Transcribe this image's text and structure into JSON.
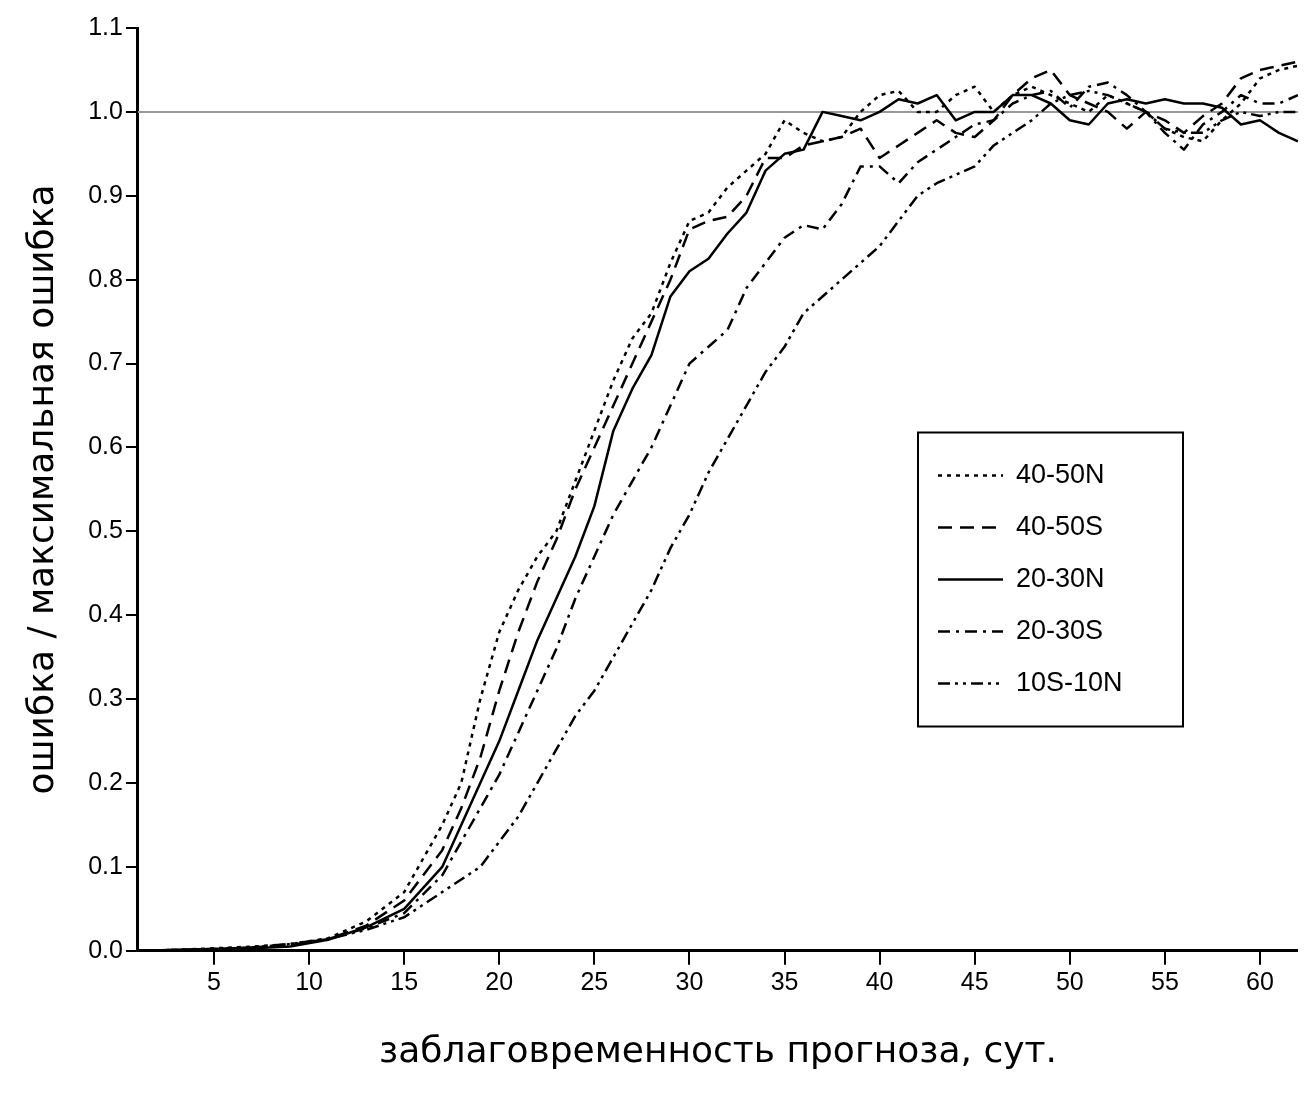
{
  "chart_data": {
    "type": "line",
    "xlabel": "заблаговременность прогноза, сут.",
    "ylabel": "ошибка / максимальная ошибка",
    "x": [
      1,
      3,
      5,
      7,
      9,
      11,
      13,
      15,
      17,
      18,
      19,
      20,
      21,
      22,
      23,
      24,
      25,
      26,
      27,
      28,
      29,
      30,
      31,
      32,
      33,
      34,
      35,
      36,
      37,
      38,
      39,
      40,
      41,
      42,
      43,
      44,
      45,
      46,
      47,
      48,
      49,
      50,
      51,
      52,
      53,
      54,
      55,
      56,
      57,
      58,
      59,
      60,
      61,
      62
    ],
    "series": [
      {
        "name": "40-50N",
        "color": "#000000",
        "line_style": "dotted",
        "values": [
          0,
          0.001,
          0.003,
          0.005,
          0.008,
          0.015,
          0.035,
          0.07,
          0.15,
          0.2,
          0.3,
          0.38,
          0.43,
          0.47,
          0.5,
          0.56,
          0.62,
          0.68,
          0.73,
          0.76,
          0.82,
          0.87,
          0.88,
          0.91,
          0.93,
          0.95,
          0.99,
          0.975,
          0.965,
          0.97,
          1.0,
          1.02,
          1.025,
          1.0,
          1.0,
          1.02,
          1.03,
          1.0,
          1.02,
          1.03,
          1.02,
          1.01,
          1.0,
          1.02,
          1.01,
          1.0,
          0.98,
          0.97,
          0.965,
          0.99,
          1.01,
          1.04,
          1.05,
          1.055
        ]
      },
      {
        "name": "40-50S",
        "color": "#000000",
        "line_style": "dashed",
        "values": [
          0,
          0.001,
          0.002,
          0.004,
          0.007,
          0.014,
          0.03,
          0.06,
          0.12,
          0.17,
          0.23,
          0.31,
          0.38,
          0.44,
          0.49,
          0.55,
          0.6,
          0.65,
          0.7,
          0.75,
          0.8,
          0.86,
          0.87,
          0.875,
          0.9,
          0.945,
          0.945,
          0.96,
          0.965,
          0.97,
          0.98,
          0.945,
          0.96,
          0.975,
          0.99,
          0.975,
          0.97,
          0.99,
          1.02,
          1.04,
          1.05,
          1.02,
          1.01,
          1.0,
          0.98,
          1.0,
          0.99,
          0.975,
          0.995,
          1.01,
          1.04,
          1.05,
          1.055,
          1.06
        ]
      },
      {
        "name": "20-30N",
        "color": "#000000",
        "line_style": "solid",
        "values": [
          0,
          0.001,
          0.002,
          0.003,
          0.005,
          0.013,
          0.028,
          0.05,
          0.1,
          0.15,
          0.2,
          0.25,
          0.31,
          0.37,
          0.42,
          0.47,
          0.53,
          0.62,
          0.67,
          0.71,
          0.78,
          0.81,
          0.825,
          0.855,
          0.88,
          0.93,
          0.95,
          0.955,
          1.0,
          0.995,
          0.99,
          1.0,
          1.015,
          1.01,
          1.02,
          0.99,
          1.0,
          1.0,
          1.02,
          1.02,
          1.01,
          0.99,
          0.985,
          1.01,
          1.015,
          1.01,
          1.015,
          1.01,
          1.01,
          1.005,
          0.985,
          0.99,
          0.975,
          0.965
        ]
      },
      {
        "name": "20-30S",
        "color": "#000000",
        "line_style": "dashdot",
        "values": [
          0,
          0.001,
          0.002,
          0.004,
          0.008,
          0.014,
          0.027,
          0.045,
          0.09,
          0.13,
          0.17,
          0.21,
          0.26,
          0.31,
          0.36,
          0.42,
          0.47,
          0.52,
          0.56,
          0.6,
          0.65,
          0.7,
          0.72,
          0.74,
          0.79,
          0.82,
          0.85,
          0.865,
          0.86,
          0.89,
          0.935,
          0.935,
          0.915,
          0.94,
          0.955,
          0.97,
          0.985,
          0.99,
          1.01,
          1.02,
          1.025,
          1.005,
          1.03,
          1.035,
          1.02,
          1.0,
          0.975,
          0.955,
          0.985,
          1.0,
          1.02,
          1.01,
          1.01,
          1.02
        ]
      },
      {
        "name": "10S-10N",
        "color": "#000000",
        "line_style": "dashdotdot",
        "values": [
          0,
          0.001,
          0.002,
          0.004,
          0.008,
          0.014,
          0.025,
          0.04,
          0.07,
          0.085,
          0.1,
          0.13,
          0.16,
          0.2,
          0.24,
          0.28,
          0.31,
          0.35,
          0.39,
          0.43,
          0.48,
          0.52,
          0.57,
          0.61,
          0.65,
          0.69,
          0.72,
          0.76,
          0.78,
          0.8,
          0.82,
          0.84,
          0.87,
          0.9,
          0.915,
          0.925,
          0.935,
          0.96,
          0.975,
          0.99,
          1.01,
          1.02,
          1.025,
          1.02,
          1.01,
          1.0,
          0.98,
          0.975,
          0.975,
          0.99,
          1.0,
          0.995,
          1.0,
          1.0
        ]
      }
    ],
    "xlim": [
      1,
      62
    ],
    "xticks": [
      5,
      10,
      15,
      20,
      25,
      30,
      35,
      40,
      45,
      50,
      55,
      60
    ],
    "ylim": [
      0,
      1.1
    ],
    "yticks": [
      {
        "value": 0,
        "label": "0.0"
      },
      {
        "value": 0.1,
        "label": "0.1"
      },
      {
        "value": 0.2,
        "label": "0.2"
      },
      {
        "value": 0.3,
        "label": "0.3"
      },
      {
        "value": 0.4,
        "label": "0.4"
      },
      {
        "value": 0.5,
        "label": "0.5"
      },
      {
        "value": 0.6,
        "label": "0.6"
      },
      {
        "value": 0.7,
        "label": "0.7"
      },
      {
        "value": 0.8,
        "label": "0.8"
      },
      {
        "value": 0.9,
        "label": "0.9"
      },
      {
        "value": 1,
        "label": "1.0"
      },
      {
        "value": 1.1,
        "label": "1.1"
      }
    ],
    "ref_lines": [
      {
        "axis": "y",
        "value": 1,
        "color": "#999999"
      }
    ],
    "grid": false,
    "legend": "right",
    "marker": "none"
  }
}
